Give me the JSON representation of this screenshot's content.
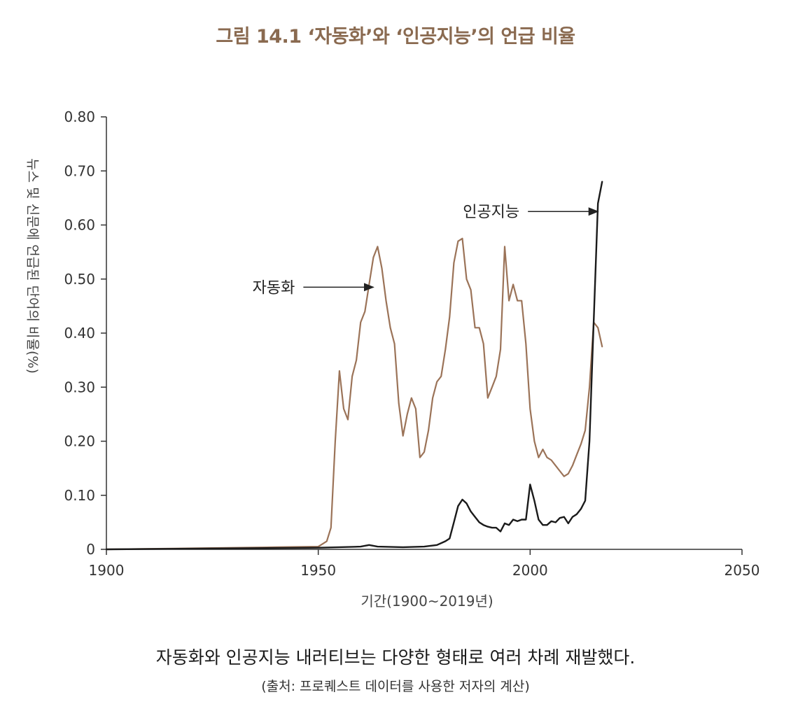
{
  "figure": {
    "title": "그림 14.1  ‘자동화’와 ‘인공지능’의 언급 비율",
    "caption": "자동화와 인공지능 내러티브는 다양한 형태로 여러 차례 재발했다.",
    "source": "(출처: 프로퀘스트 데이터를 사용한 저자의 계산)"
  },
  "chart_data": {
    "type": "line",
    "title": "그림 14.1  ‘자동화’와 ‘인공지능’의 언급 비율",
    "xlabel": "기간(1900~2019년)",
    "ylabel": "뉴스 및 신문에 언급된 단어의 비율(%)",
    "xlim": [
      1900,
      2050
    ],
    "ylim": [
      0,
      0.8
    ],
    "xticks": [
      1900,
      1950,
      2000,
      2050
    ],
    "xtick_labels": [
      "1900",
      "1950",
      "2000",
      "2050"
    ],
    "yticks": [
      0,
      0.1,
      0.2,
      0.3,
      0.4,
      0.5,
      0.6,
      0.7,
      0.8
    ],
    "ytick_labels": [
      "0",
      "0.10",
      "0.20",
      "0.30",
      "0.40",
      "0.50",
      "0.60",
      "0.70",
      "0.80"
    ],
    "grid": false,
    "series": [
      {
        "name": "자동화",
        "color": "#9b7358",
        "points": [
          [
            1900,
            0.0
          ],
          [
            1920,
            0.002
          ],
          [
            1940,
            0.004
          ],
          [
            1950,
            0.005
          ],
          [
            1951,
            0.01
          ],
          [
            1952,
            0.015
          ],
          [
            1953,
            0.04
          ],
          [
            1954,
            0.2
          ],
          [
            1955,
            0.33
          ],
          [
            1956,
            0.26
          ],
          [
            1957,
            0.24
          ],
          [
            1958,
            0.32
          ],
          [
            1959,
            0.35
          ],
          [
            1960,
            0.42
          ],
          [
            1961,
            0.44
          ],
          [
            1962,
            0.49
          ],
          [
            1963,
            0.54
          ],
          [
            1964,
            0.56
          ],
          [
            1965,
            0.52
          ],
          [
            1966,
            0.46
          ],
          [
            1967,
            0.41
          ],
          [
            1968,
            0.38
          ],
          [
            1969,
            0.27
          ],
          [
            1970,
            0.21
          ],
          [
            1971,
            0.25
          ],
          [
            1972,
            0.28
          ],
          [
            1973,
            0.26
          ],
          [
            1974,
            0.17
          ],
          [
            1975,
            0.18
          ],
          [
            1976,
            0.22
          ],
          [
            1977,
            0.28
          ],
          [
            1978,
            0.31
          ],
          [
            1979,
            0.32
          ],
          [
            1980,
            0.37
          ],
          [
            1981,
            0.43
          ],
          [
            1982,
            0.53
          ],
          [
            1983,
            0.57
          ],
          [
            1984,
            0.575
          ],
          [
            1985,
            0.5
          ],
          [
            1986,
            0.48
          ],
          [
            1987,
            0.41
          ],
          [
            1988,
            0.41
          ],
          [
            1989,
            0.38
          ],
          [
            1990,
            0.28
          ],
          [
            1991,
            0.3
          ],
          [
            1992,
            0.32
          ],
          [
            1993,
            0.37
          ],
          [
            1994,
            0.56
          ],
          [
            1995,
            0.46
          ],
          [
            1996,
            0.49
          ],
          [
            1997,
            0.46
          ],
          [
            1998,
            0.46
          ],
          [
            1999,
            0.38
          ],
          [
            2000,
            0.26
          ],
          [
            2001,
            0.2
          ],
          [
            2002,
            0.17
          ],
          [
            2003,
            0.185
          ],
          [
            2004,
            0.17
          ],
          [
            2005,
            0.165
          ],
          [
            2006,
            0.155
          ],
          [
            2007,
            0.145
          ],
          [
            2008,
            0.135
          ],
          [
            2009,
            0.14
          ],
          [
            2010,
            0.155
          ],
          [
            2011,
            0.175
          ],
          [
            2012,
            0.195
          ],
          [
            2013,
            0.22
          ],
          [
            2014,
            0.3
          ],
          [
            2015,
            0.42
          ],
          [
            2016,
            0.41
          ],
          [
            2017,
            0.375
          ]
        ]
      },
      {
        "name": "인공지능",
        "color": "#1a1a1a",
        "points": [
          [
            1900,
            0.0
          ],
          [
            1950,
            0.003
          ],
          [
            1960,
            0.005
          ],
          [
            1962,
            0.008
          ],
          [
            1964,
            0.005
          ],
          [
            1970,
            0.004
          ],
          [
            1975,
            0.005
          ],
          [
            1978,
            0.008
          ],
          [
            1980,
            0.015
          ],
          [
            1981,
            0.02
          ],
          [
            1982,
            0.05
          ],
          [
            1983,
            0.08
          ],
          [
            1984,
            0.092
          ],
          [
            1985,
            0.085
          ],
          [
            1986,
            0.07
          ],
          [
            1987,
            0.06
          ],
          [
            1988,
            0.05
          ],
          [
            1989,
            0.045
          ],
          [
            1990,
            0.042
          ],
          [
            1991,
            0.04
          ],
          [
            1992,
            0.04
          ],
          [
            1993,
            0.033
          ],
          [
            1994,
            0.048
          ],
          [
            1995,
            0.045
          ],
          [
            1996,
            0.055
          ],
          [
            1997,
            0.052
          ],
          [
            1998,
            0.055
          ],
          [
            1999,
            0.055
          ],
          [
            2000,
            0.12
          ],
          [
            2001,
            0.09
          ],
          [
            2002,
            0.055
          ],
          [
            2003,
            0.045
          ],
          [
            2004,
            0.045
          ],
          [
            2005,
            0.052
          ],
          [
            2006,
            0.05
          ],
          [
            2007,
            0.058
          ],
          [
            2008,
            0.06
          ],
          [
            2009,
            0.048
          ],
          [
            2010,
            0.06
          ],
          [
            2011,
            0.065
          ],
          [
            2012,
            0.075
          ],
          [
            2013,
            0.09
          ],
          [
            2014,
            0.2
          ],
          [
            2015,
            0.42
          ],
          [
            2016,
            0.64
          ],
          [
            2017,
            0.68
          ]
        ]
      }
    ],
    "annotations": [
      {
        "text": "자동화",
        "target_x": 1963,
        "target_y": 0.485,
        "arrow": "right"
      },
      {
        "text": "인공지능",
        "target_x": 2016,
        "target_y": 0.625,
        "arrow": "right"
      }
    ]
  }
}
